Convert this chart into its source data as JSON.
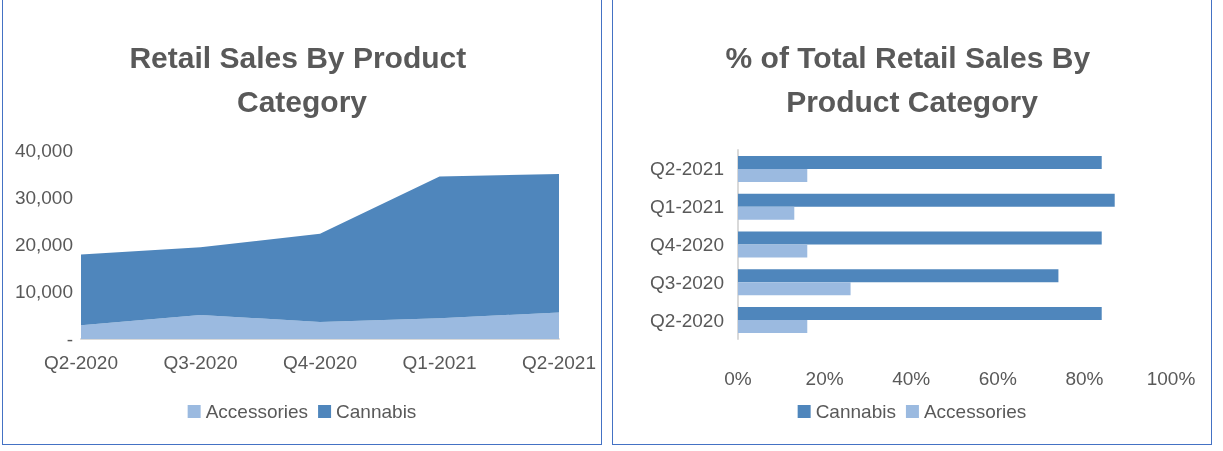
{
  "chart_data": [
    {
      "type": "area",
      "title": "Retail Sales By Product Category",
      "stacked": true,
      "categories": [
        "Q2-2020",
        "Q3-2020",
        "Q4-2020",
        "Q1-2021",
        "Q2-2021"
      ],
      "series": [
        {
          "name": "Accessories",
          "color": "#9bbae0",
          "values": [
            2900,
            5100,
            3600,
            4400,
            5600
          ]
        },
        {
          "name": "Cannabis",
          "color": "#4f86bc",
          "values": [
            15000,
            14300,
            18700,
            30000,
            29300
          ]
        }
      ],
      "ylim": [
        0,
        40000
      ],
      "yticks": [
        {
          "value": 0,
          "label": "-"
        },
        {
          "value": 10000,
          "label": "10,000"
        },
        {
          "value": 20000,
          "label": "20,000"
        },
        {
          "value": 30000,
          "label": "30,000"
        },
        {
          "value": 40000,
          "label": "40,000"
        }
      ],
      "grid": false,
      "legend": "bottom"
    },
    {
      "type": "bar",
      "title": "% of Total Retail Sales By Product Category",
      "orientation": "horizontal",
      "categories": [
        "Q2-2021",
        "Q1-2021",
        "Q4-2020",
        "Q3-2020",
        "Q2-2020"
      ],
      "series": [
        {
          "name": "Cannabis",
          "color": "#4f86bc",
          "values": [
            84,
            87,
            84,
            74,
            84
          ]
        },
        {
          "name": "Accessories",
          "color": "#9bbae0",
          "values": [
            16,
            13,
            16,
            26,
            16
          ]
        }
      ],
      "xlim": [
        0,
        100
      ],
      "xticks": [
        {
          "value": 0,
          "label": "0%"
        },
        {
          "value": 20,
          "label": "20%"
        },
        {
          "value": 40,
          "label": "40%"
        },
        {
          "value": 60,
          "label": "60%"
        },
        {
          "value": 80,
          "label": "80%"
        },
        {
          "value": 100,
          "label": "100%"
        }
      ],
      "grid": false,
      "legend": "bottom"
    }
  ]
}
